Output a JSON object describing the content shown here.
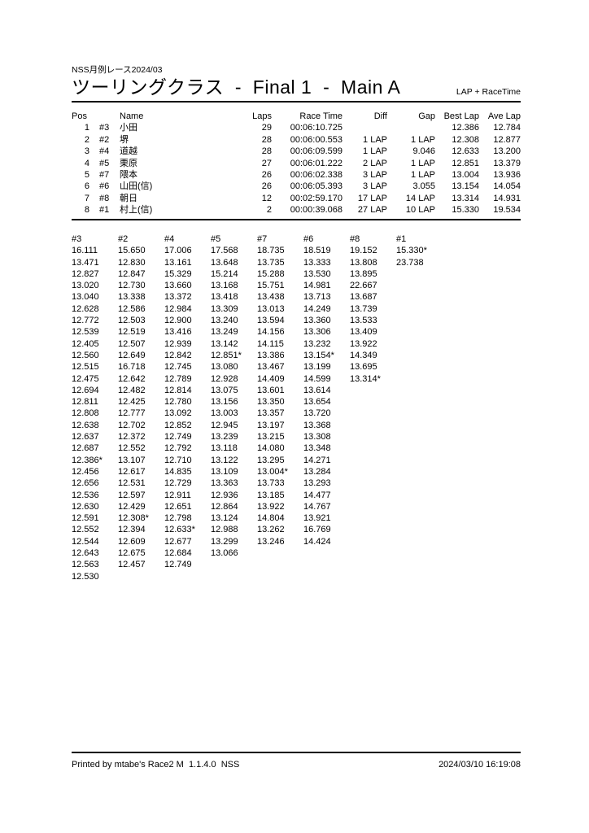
{
  "header": {
    "event": "NSS月例レース2024/03",
    "title": "ツーリングクラス  -  Final 1  -  Main A",
    "mode_label": "LAP + RaceTime"
  },
  "results": {
    "columns": [
      "Pos",
      "Name",
      "Laps",
      "Race Time",
      "Diff",
      "Gap",
      "Best Lap",
      "Ave Lap"
    ],
    "rows": [
      {
        "pos": "1",
        "car": "#3",
        "name": "小田",
        "laps": "29",
        "race_time": "00:06:10.725",
        "diff": "",
        "gap": "",
        "best_lap": "12.386",
        "ave_lap": "12.784"
      },
      {
        "pos": "2",
        "car": "#2",
        "name": "堺",
        "laps": "28",
        "race_time": "00:06:00.553",
        "diff": "1 LAP",
        "gap": "1 LAP",
        "best_lap": "12.308",
        "ave_lap": "12.877"
      },
      {
        "pos": "3",
        "car": "#4",
        "name": "道越",
        "laps": "28",
        "race_time": "00:06:09.599",
        "diff": "1 LAP",
        "gap": "9.046",
        "best_lap": "12.633",
        "ave_lap": "13.200"
      },
      {
        "pos": "4",
        "car": "#5",
        "name": "栗原",
        "laps": "27",
        "race_time": "00:06:01.222",
        "diff": "2 LAP",
        "gap": "1 LAP",
        "best_lap": "12.851",
        "ave_lap": "13.379"
      },
      {
        "pos": "5",
        "car": "#7",
        "name": "隈本",
        "laps": "26",
        "race_time": "00:06:02.338",
        "diff": "3 LAP",
        "gap": "1 LAP",
        "best_lap": "13.004",
        "ave_lap": "13.936"
      },
      {
        "pos": "6",
        "car": "#6",
        "name": "山田(信)",
        "laps": "26",
        "race_time": "00:06:05.393",
        "diff": "3 LAP",
        "gap": "3.055",
        "best_lap": "13.154",
        "ave_lap": "14.054"
      },
      {
        "pos": "7",
        "car": "#8",
        "name": "朝日",
        "laps": "12",
        "race_time": "00:02:59.170",
        "diff": "17 LAP",
        "gap": "14 LAP",
        "best_lap": "13.314",
        "ave_lap": "14.931"
      },
      {
        "pos": "8",
        "car": "#1",
        "name": "村上(信)",
        "laps": "2",
        "race_time": "00:00:39.068",
        "diff": "27 LAP",
        "gap": "10 LAP",
        "best_lap": "15.330",
        "ave_lap": "19.534"
      }
    ]
  },
  "lap_chart": {
    "columns": [
      {
        "label": "#3",
        "laps": [
          "16.111",
          "13.471",
          "12.827",
          "13.020",
          "13.040",
          "12.628",
          "12.772",
          "12.539",
          "12.405",
          "12.560",
          "12.515",
          "12.475",
          "12.694",
          "12.811",
          "12.808",
          "12.638",
          "12.637",
          "12.687",
          "12.386*",
          "12.456",
          "12.656",
          "12.536",
          "12.630",
          "12.591",
          "12.552",
          "12.544",
          "12.643",
          "12.563",
          "12.530"
        ]
      },
      {
        "label": "#2",
        "laps": [
          "15.650",
          "12.830",
          "12.847",
          "12.730",
          "13.338",
          "12.586",
          "12.503",
          "12.519",
          "12.507",
          "12.649",
          "16.718",
          "12.642",
          "12.482",
          "12.425",
          "12.777",
          "12.702",
          "12.372",
          "12.552",
          "13.107",
          "12.617",
          "12.531",
          "12.597",
          "12.429",
          "12.308*",
          "12.394",
          "12.609",
          "12.675",
          "12.457"
        ]
      },
      {
        "label": "#4",
        "laps": [
          "17.006",
          "13.161",
          "15.329",
          "13.660",
          "13.372",
          "12.984",
          "12.900",
          "13.416",
          "12.939",
          "12.842",
          "12.745",
          "12.789",
          "12.814",
          "12.780",
          "13.092",
          "12.852",
          "12.749",
          "12.792",
          "12.710",
          "14.835",
          "12.729",
          "12.911",
          "12.651",
          "12.798",
          "12.633*",
          "12.677",
          "12.684",
          "12.749"
        ]
      },
      {
        "label": "#5",
        "laps": [
          "17.568",
          "13.648",
          "15.214",
          "13.168",
          "13.418",
          "13.309",
          "13.240",
          "13.249",
          "13.142",
          "12.851*",
          "13.080",
          "12.928",
          "13.075",
          "13.156",
          "13.003",
          "12.945",
          "13.239",
          "13.118",
          "13.122",
          "13.109",
          "13.363",
          "12.936",
          "12.864",
          "13.124",
          "12.988",
          "13.299",
          "13.066"
        ]
      },
      {
        "label": "#7",
        "laps": [
          "18.735",
          "13.735",
          "15.288",
          "15.751",
          "13.438",
          "13.013",
          "13.594",
          "14.156",
          "14.115",
          "13.386",
          "13.467",
          "14.409",
          "13.601",
          "13.350",
          "13.357",
          "13.197",
          "13.215",
          "14.080",
          "13.295",
          "13.004*",
          "13.733",
          "13.185",
          "13.922",
          "14.804",
          "13.262",
          "13.246"
        ]
      },
      {
        "label": "#6",
        "laps": [
          "18.519",
          "13.333",
          "13.530",
          "14.981",
          "13.713",
          "14.249",
          "13.360",
          "13.306",
          "13.232",
          "13.154*",
          "13.199",
          "14.599",
          "13.614",
          "13.654",
          "13.720",
          "13.368",
          "13.308",
          "13.348",
          "14.271",
          "13.284",
          "13.293",
          "14.477",
          "14.767",
          "13.921",
          "16.769",
          "14.424"
        ]
      },
      {
        "label": "#8",
        "laps": [
          "19.152",
          "13.808",
          "13.895",
          "22.667",
          "13.687",
          "13.739",
          "13.533",
          "13.409",
          "13.922",
          "14.349",
          "13.695",
          "13.314*"
        ]
      },
      {
        "label": "#1",
        "laps": [
          "15.330*",
          "23.738"
        ]
      }
    ]
  },
  "footer": {
    "printed_by": "Printed by mtabe's Race2 M  1.1.4.0  NSS",
    "datetime": "2024/03/10 16:19:08"
  }
}
